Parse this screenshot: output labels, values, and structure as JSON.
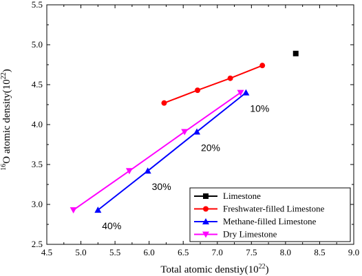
{
  "chart_data": {
    "type": "line",
    "xlabel": "Total atomic denstiy(10",
    "xlabel_sup": "22",
    "xlabel_end": ")",
    "ylabel_pre_sup": "16",
    "ylabel": "O atomic density(10",
    "ylabel_sup": "22",
    "ylabel_end": ")",
    "xlim": [
      4.5,
      9.0
    ],
    "ylim": [
      2.5,
      5.5
    ],
    "xticks": [
      "4.5",
      "5.0",
      "5.5",
      "6.0",
      "6.5",
      "7.0",
      "7.5",
      "8.0",
      "8.5",
      "9.0"
    ],
    "yticks": [
      "2.5",
      "3.0",
      "3.5",
      "4.0",
      "4.5",
      "5.0",
      "5.5"
    ],
    "grid": false,
    "legend_position": "bottom-right",
    "series": [
      {
        "name": "Limestone",
        "color": "#000000",
        "marker": "square",
        "points": [
          [
            8.15,
            4.89
          ]
        ]
      },
      {
        "name": "Freshwater-filled Limestone",
        "color": "#ff0000",
        "marker": "circle",
        "points": [
          [
            6.22,
            4.27
          ],
          [
            6.71,
            4.43
          ],
          [
            7.19,
            4.58
          ],
          [
            7.66,
            4.74
          ]
        ]
      },
      {
        "name": "Methane-filled Limestone",
        "color": "#0000ff",
        "marker": "triangle-up",
        "points": [
          [
            5.25,
            2.93
          ],
          [
            5.98,
            3.42
          ],
          [
            6.7,
            3.91
          ],
          [
            7.42,
            4.4
          ]
        ]
      },
      {
        "name": "Dry Limestone",
        "color": "#ff00ff",
        "marker": "triangle-down",
        "points": [
          [
            4.89,
            2.93
          ],
          [
            5.71,
            3.42
          ],
          [
            6.52,
            3.91
          ],
          [
            7.34,
            4.4
          ]
        ]
      }
    ],
    "annotations": [
      {
        "text": "10%",
        "x": 7.48,
        "y": 4.16
      },
      {
        "text": "20%",
        "x": 6.76,
        "y": 3.67
      },
      {
        "text": "30%",
        "x": 6.04,
        "y": 3.18
      },
      {
        "text": "40%",
        "x": 5.31,
        "y": 2.69
      }
    ]
  }
}
